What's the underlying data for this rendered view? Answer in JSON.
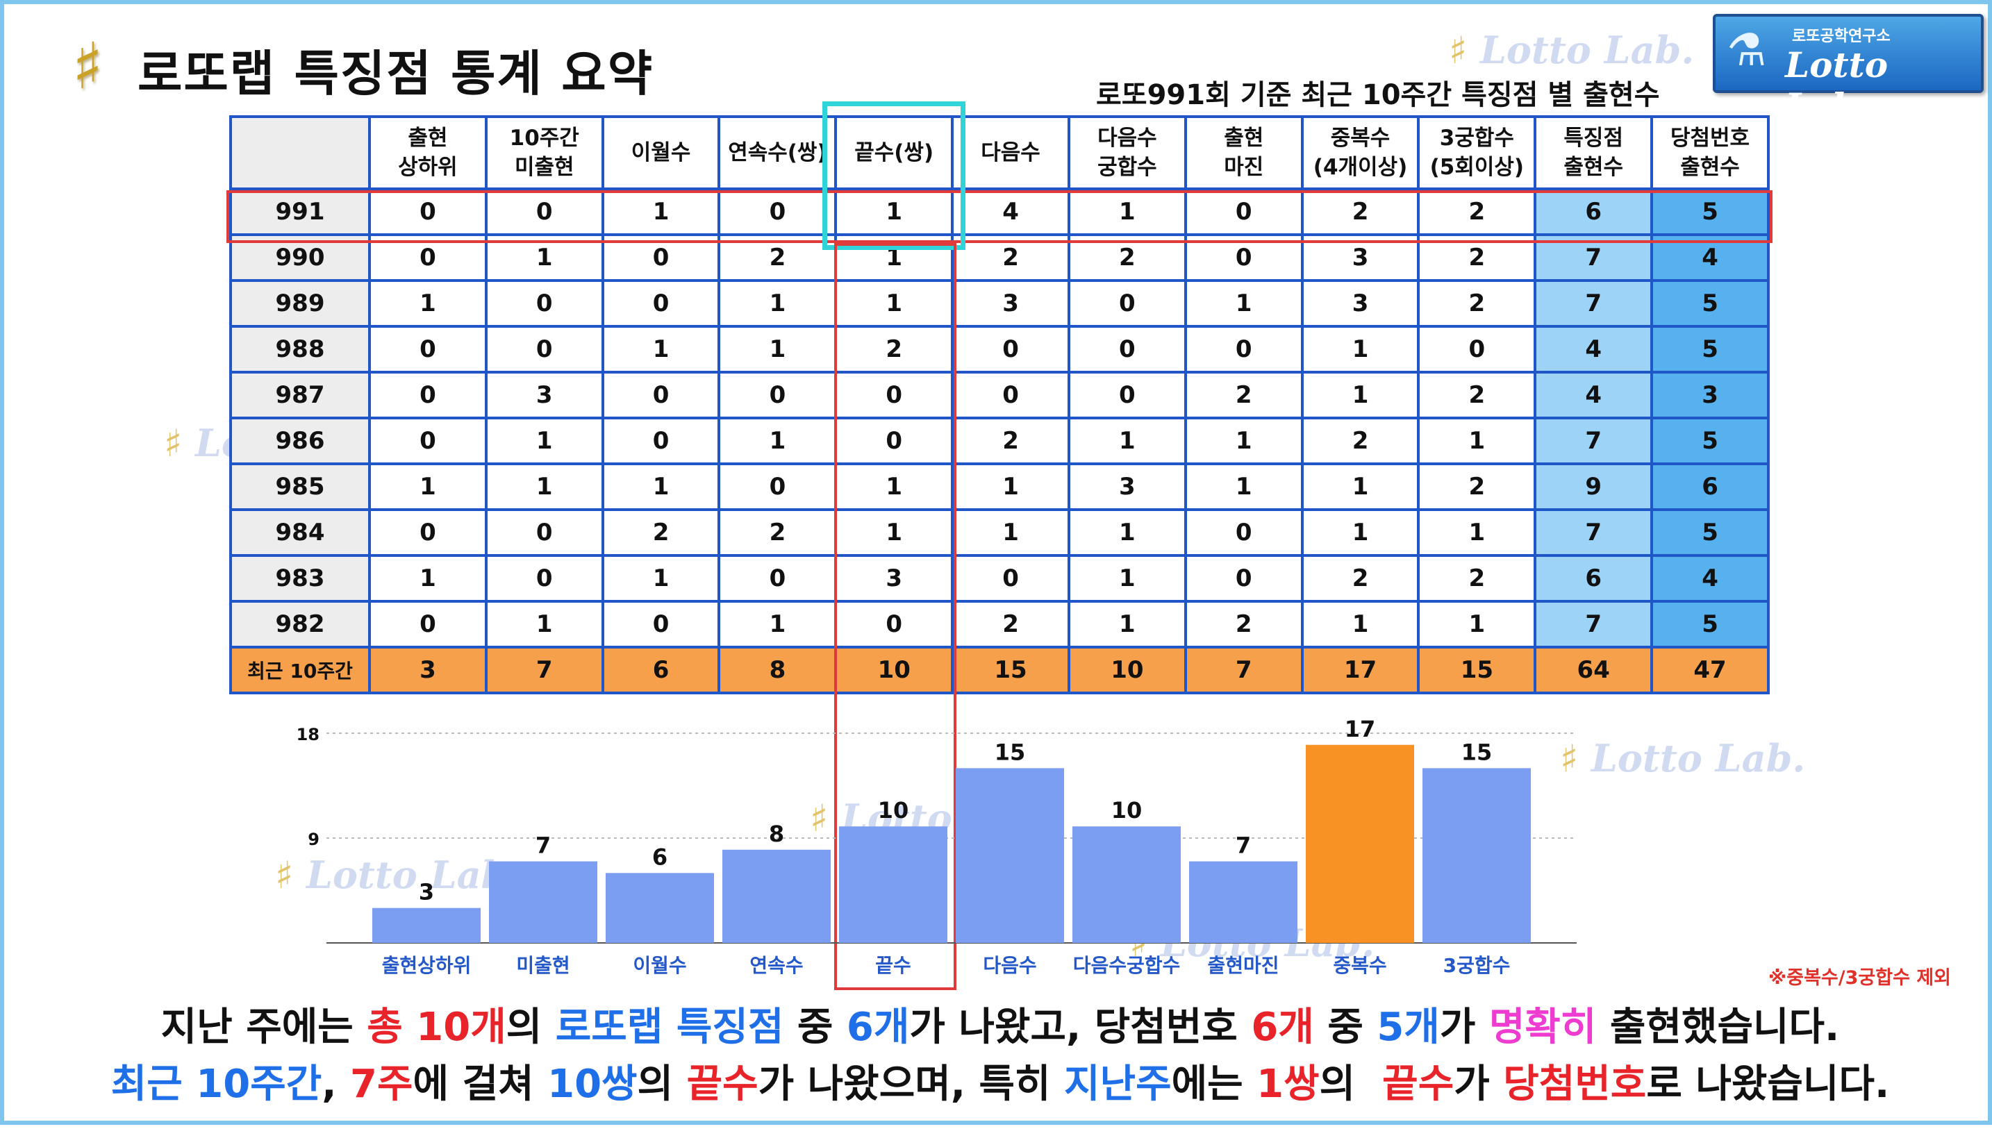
{
  "header": {
    "title": "로또랩 특징점 통계 요약",
    "subtitle": "로또991회 기준 최근 10주간 특징점 별 출현수",
    "badge_top": "로또공학연구소",
    "badge_brand": "Lotto Lab.",
    "hash_icon": "hash-icon",
    "watermark": "Lotto Lab."
  },
  "table": {
    "headers": [
      "",
      "출현\n상하위",
      "10주간\n미출현",
      "이월수",
      "연속수(쌍)",
      "끝수(쌍)",
      "다음수",
      "다음수\n궁합수",
      "출현\n마진",
      "중복수\n(4개이상)",
      "3궁합수\n(5회이상)",
      "특징점\n출현수",
      "당첨번호\n출현수"
    ],
    "rows": [
      {
        "label": "991",
        "values": [
          "0",
          "0",
          "1",
          "0",
          "1",
          "4",
          "1",
          "0",
          "2",
          "2",
          "6",
          "5"
        ]
      },
      {
        "label": "990",
        "values": [
          "0",
          "1",
          "0",
          "2",
          "1",
          "2",
          "2",
          "0",
          "3",
          "2",
          "7",
          "4"
        ]
      },
      {
        "label": "989",
        "values": [
          "1",
          "0",
          "0",
          "1",
          "1",
          "3",
          "0",
          "1",
          "3",
          "2",
          "7",
          "5"
        ]
      },
      {
        "label": "988",
        "values": [
          "0",
          "0",
          "1",
          "1",
          "2",
          "0",
          "0",
          "0",
          "1",
          "0",
          "4",
          "5"
        ]
      },
      {
        "label": "987",
        "values": [
          "0",
          "3",
          "0",
          "0",
          "0",
          "0",
          "0",
          "2",
          "1",
          "2",
          "4",
          "3"
        ]
      },
      {
        "label": "986",
        "values": [
          "0",
          "1",
          "0",
          "1",
          "0",
          "2",
          "1",
          "1",
          "2",
          "1",
          "7",
          "5"
        ]
      },
      {
        "label": "985",
        "values": [
          "1",
          "1",
          "1",
          "0",
          "1",
          "1",
          "3",
          "1",
          "1",
          "2",
          "9",
          "6"
        ]
      },
      {
        "label": "984",
        "values": [
          "0",
          "0",
          "2",
          "2",
          "1",
          "1",
          "1",
          "0",
          "1",
          "1",
          "7",
          "5"
        ]
      },
      {
        "label": "983",
        "values": [
          "1",
          "0",
          "1",
          "0",
          "3",
          "0",
          "1",
          "0",
          "2",
          "2",
          "6",
          "4"
        ]
      },
      {
        "label": "982",
        "values": [
          "0",
          "1",
          "0",
          "1",
          "0",
          "2",
          "1",
          "2",
          "1",
          "1",
          "7",
          "5"
        ]
      }
    ],
    "total": {
      "label": "최근 10주간",
      "values": [
        "3",
        "7",
        "6",
        "8",
        "10",
        "15",
        "10",
        "7",
        "17",
        "15",
        "64",
        "47"
      ]
    }
  },
  "chart_data": {
    "type": "bar",
    "categories": [
      "출현상하위",
      "미출현",
      "이월수",
      "연속수",
      "끝수",
      "다음수",
      "다음수궁합수",
      "출현마진",
      "중복수",
      "3궁합수"
    ],
    "values": [
      3,
      7,
      6,
      8,
      10,
      15,
      10,
      7,
      17,
      15
    ],
    "ylim": [
      0,
      18
    ],
    "yticks": [
      9,
      18
    ],
    "grid": true,
    "colors": {
      "default": "#7b9df2",
      "highlight": "#f99224"
    },
    "highlight_index": 8,
    "note": "※중복수/3궁합수 제외"
  },
  "summary": {
    "line1": [
      {
        "t": "지난 주에는 ",
        "c": ""
      },
      {
        "t": "총 10개",
        "c": "red"
      },
      {
        "t": "의 ",
        "c": ""
      },
      {
        "t": "로또랩 특징점",
        "c": "blue"
      },
      {
        "t": " 중 ",
        "c": ""
      },
      {
        "t": "6개",
        "c": "blue"
      },
      {
        "t": "가 나왔고, 당첨번호 ",
        "c": ""
      },
      {
        "t": "6개",
        "c": "red"
      },
      {
        "t": " 중 ",
        "c": ""
      },
      {
        "t": "5개",
        "c": "blue"
      },
      {
        "t": "가 ",
        "c": ""
      },
      {
        "t": "명확히",
        "c": "pink"
      },
      {
        "t": " 출현했습니다.",
        "c": ""
      }
    ],
    "line2": [
      {
        "t": "최근 10주간",
        "c": "blue"
      },
      {
        "t": ", ",
        "c": ""
      },
      {
        "t": "7주",
        "c": "red"
      },
      {
        "t": "에 걸쳐 ",
        "c": ""
      },
      {
        "t": "10쌍",
        "c": "blue"
      },
      {
        "t": "의 ",
        "c": ""
      },
      {
        "t": "끝수",
        "c": "red"
      },
      {
        "t": "가 나왔으며, 특히 ",
        "c": ""
      },
      {
        "t": "지난주",
        "c": "blue"
      },
      {
        "t": "에는 ",
        "c": ""
      },
      {
        "t": "1쌍",
        "c": "red"
      },
      {
        "t": "의  ",
        "c": ""
      },
      {
        "t": "끝수",
        "c": "red"
      },
      {
        "t": "가 ",
        "c": ""
      },
      {
        "t": "당첨번호",
        "c": "red"
      },
      {
        "t": "로 나왔습니다.",
        "c": ""
      }
    ]
  }
}
